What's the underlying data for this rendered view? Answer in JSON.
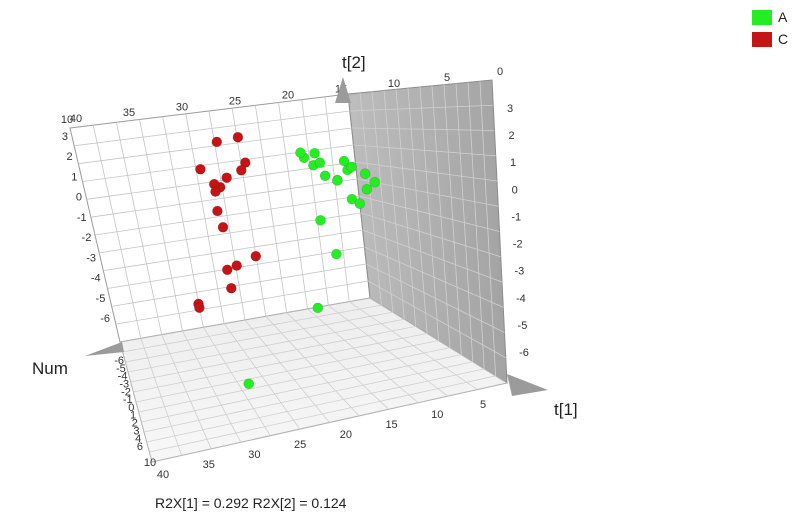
{
  "chart_data": {
    "type": "scatter",
    "title": "",
    "axes": {
      "x_label": "t[1]",
      "y_label": "t[2]",
      "z_label": "Num"
    },
    "footer": "R2X[1] = 0.292 R2X[2] = 0.124",
    "legend": {
      "position": "top-right",
      "items": [
        {
          "label": "A",
          "color": "#22ee22"
        },
        {
          "label": "C",
          "color": "#c41414"
        }
      ]
    },
    "ticks": {
      "num_back": [
        "40",
        "35",
        "30",
        "25",
        "20",
        "15",
        "10",
        "5",
        "0"
      ],
      "num_back_overlap": "10",
      "num_floor": [
        "40",
        "35",
        "30",
        "25",
        "20",
        "15",
        "10",
        "5"
      ],
      "num_floor_overlap": "10",
      "t2_right": [
        "3",
        "2",
        "1",
        "0",
        "-1",
        "-2",
        "-3",
        "-4",
        "-5",
        "-6"
      ],
      "t1_floor_left": [
        "-6",
        "-5",
        "-4",
        "-3",
        "-2",
        "-1",
        "0",
        "1",
        "2",
        "3",
        "4",
        "6"
      ],
      "t2_left": [
        "3",
        "2",
        "1",
        "0",
        "-1",
        "-2",
        "-3",
        "-4",
        "-5",
        "-6"
      ]
    },
    "series": [
      {
        "name": "A",
        "color": "#22ee22",
        "points": [
          {
            "t1": -1.0,
            "t2": 3.0,
            "num": 8
          },
          {
            "t1": 0.5,
            "t2": 2.3,
            "num": 12
          },
          {
            "t1": 1.2,
            "t2": 1.9,
            "num": 8
          },
          {
            "t1": 0.6,
            "t2": 1.7,
            "num": 14
          },
          {
            "t1": 1.5,
            "t2": 1.6,
            "num": 6
          },
          {
            "t1": 0.8,
            "t2": 1.5,
            "num": 18
          },
          {
            "t1": -0.5,
            "t2": 2.2,
            "num": 20
          },
          {
            "t1": -1.0,
            "t2": 2.0,
            "num": 24
          },
          {
            "t1": -0.6,
            "t2": 1.5,
            "num": 22
          },
          {
            "t1": -0.3,
            "t2": 1.1,
            "num": 28
          },
          {
            "t1": 1.2,
            "t2": 1.0,
            "num": 10
          },
          {
            "t1": 0.6,
            "t2": 0.4,
            "num": 13
          },
          {
            "t1": 0.9,
            "t2": -0.1,
            "num": 16
          },
          {
            "t1": 0.2,
            "t2": 0.9,
            "num": 19
          },
          {
            "t1": -0.2,
            "t2": 0.7,
            "num": 25
          },
          {
            "t1": 0.2,
            "t2": 0.8,
            "num": 20
          },
          {
            "t1": -0.7,
            "t2": -0.7,
            "num": 17
          },
          {
            "t1": -0.3,
            "t2": -2.2,
            "num": 15
          },
          {
            "t1": -1.4,
            "t2": -4.3,
            "num": 12
          },
          {
            "t1": -4.8,
            "t2": -6.5,
            "num": 3
          }
        ]
      },
      {
        "name": "C",
        "color": "#c41414",
        "points": [
          {
            "t1": -4.0,
            "t2": 2.2,
            "num": 34
          },
          {
            "t1": -3.2,
            "t2": 2.6,
            "num": 30
          },
          {
            "t1": -3.1,
            "t2": 1.4,
            "num": 30
          },
          {
            "t1": -3.3,
            "t2": 1.0,
            "num": 31
          },
          {
            "t1": -3.9,
            "t2": 0.6,
            "num": 33
          },
          {
            "t1": -4.8,
            "t2": 0.6,
            "num": 40
          },
          {
            "t1": -4.2,
            "t2": -0.1,
            "num": 37
          },
          {
            "t1": -4.4,
            "t2": 0.0,
            "num": 38
          },
          {
            "t1": -4.4,
            "t2": -0.5,
            "num": 40
          },
          {
            "t1": -4.5,
            "t2": -1.0,
            "num": 35
          },
          {
            "t1": -4.4,
            "t2": -2.0,
            "num": 38
          },
          {
            "t1": -3.4,
            "t2": -2.6,
            "num": 26
          },
          {
            "t1": -4.2,
            "t2": -3.2,
            "num": 30
          },
          {
            "t1": -4.6,
            "t2": -3.4,
            "num": 31
          },
          {
            "t1": -4.6,
            "t2": -4.1,
            "num": 29
          },
          {
            "t1": -6.0,
            "t2": -5.4,
            "num": 40
          },
          {
            "t1": -6.0,
            "t2": -5.5,
            "num": 39
          }
        ]
      }
    ]
  }
}
